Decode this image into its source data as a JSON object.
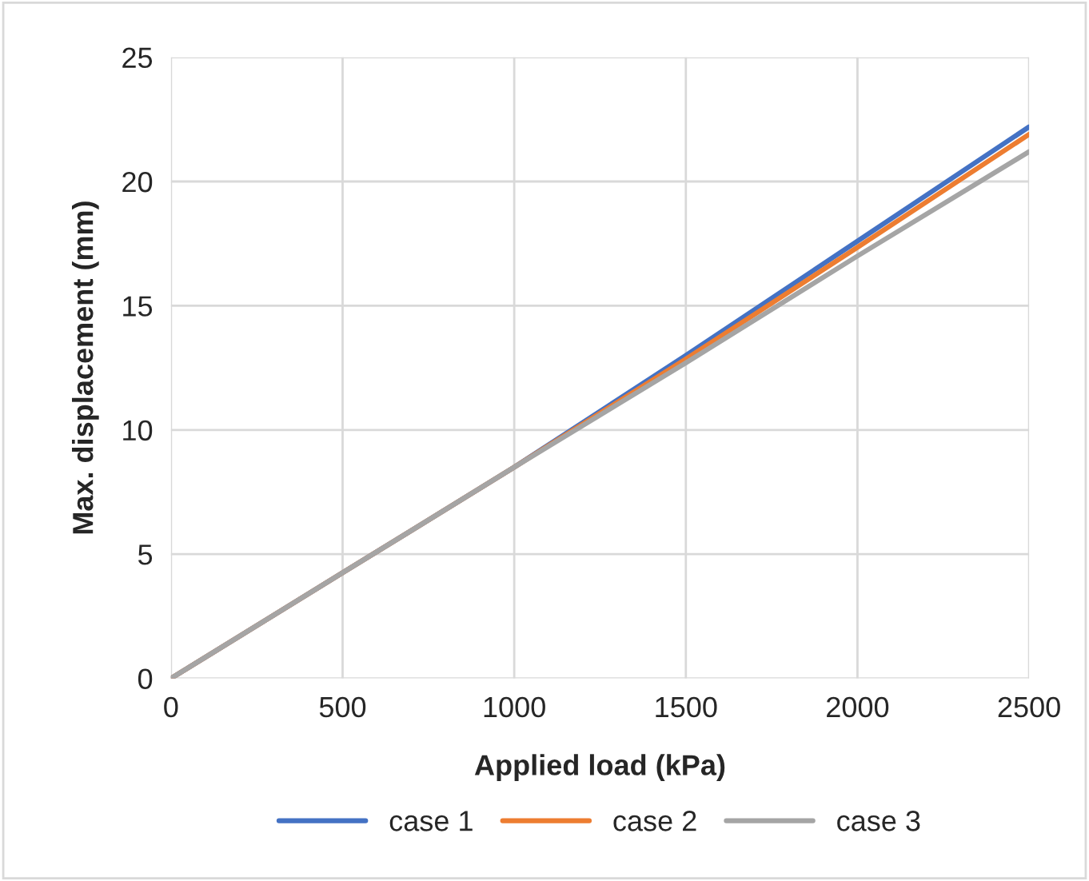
{
  "chart_data": {
    "type": "line",
    "xlabel": "Applied load (kPa)",
    "ylabel": "Max. displacement (mm)",
    "x": [
      0,
      500,
      1000,
      1500,
      2000,
      2500
    ],
    "series": [
      {
        "name": "case 1",
        "color": "#4472c4",
        "values": [
          0,
          4.25,
          8.5,
          13.0,
          17.6,
          22.2
        ]
      },
      {
        "name": "case 2",
        "color": "#ed7d31",
        "values": [
          0,
          4.25,
          8.5,
          12.85,
          17.35,
          21.9
        ]
      },
      {
        "name": "case 3",
        "color": "#a5a5a5",
        "values": [
          0,
          4.25,
          8.5,
          12.7,
          17.0,
          21.2
        ]
      }
    ],
    "xlim": [
      0,
      2500
    ],
    "xticks": [
      0,
      500,
      1000,
      1500,
      2000,
      2500
    ],
    "ylim": [
      0,
      25
    ],
    "yticks": [
      0,
      5,
      10,
      15,
      20,
      25
    ],
    "grid": true,
    "legend": "bottom",
    "marker": "none",
    "line_style": "solid"
  }
}
